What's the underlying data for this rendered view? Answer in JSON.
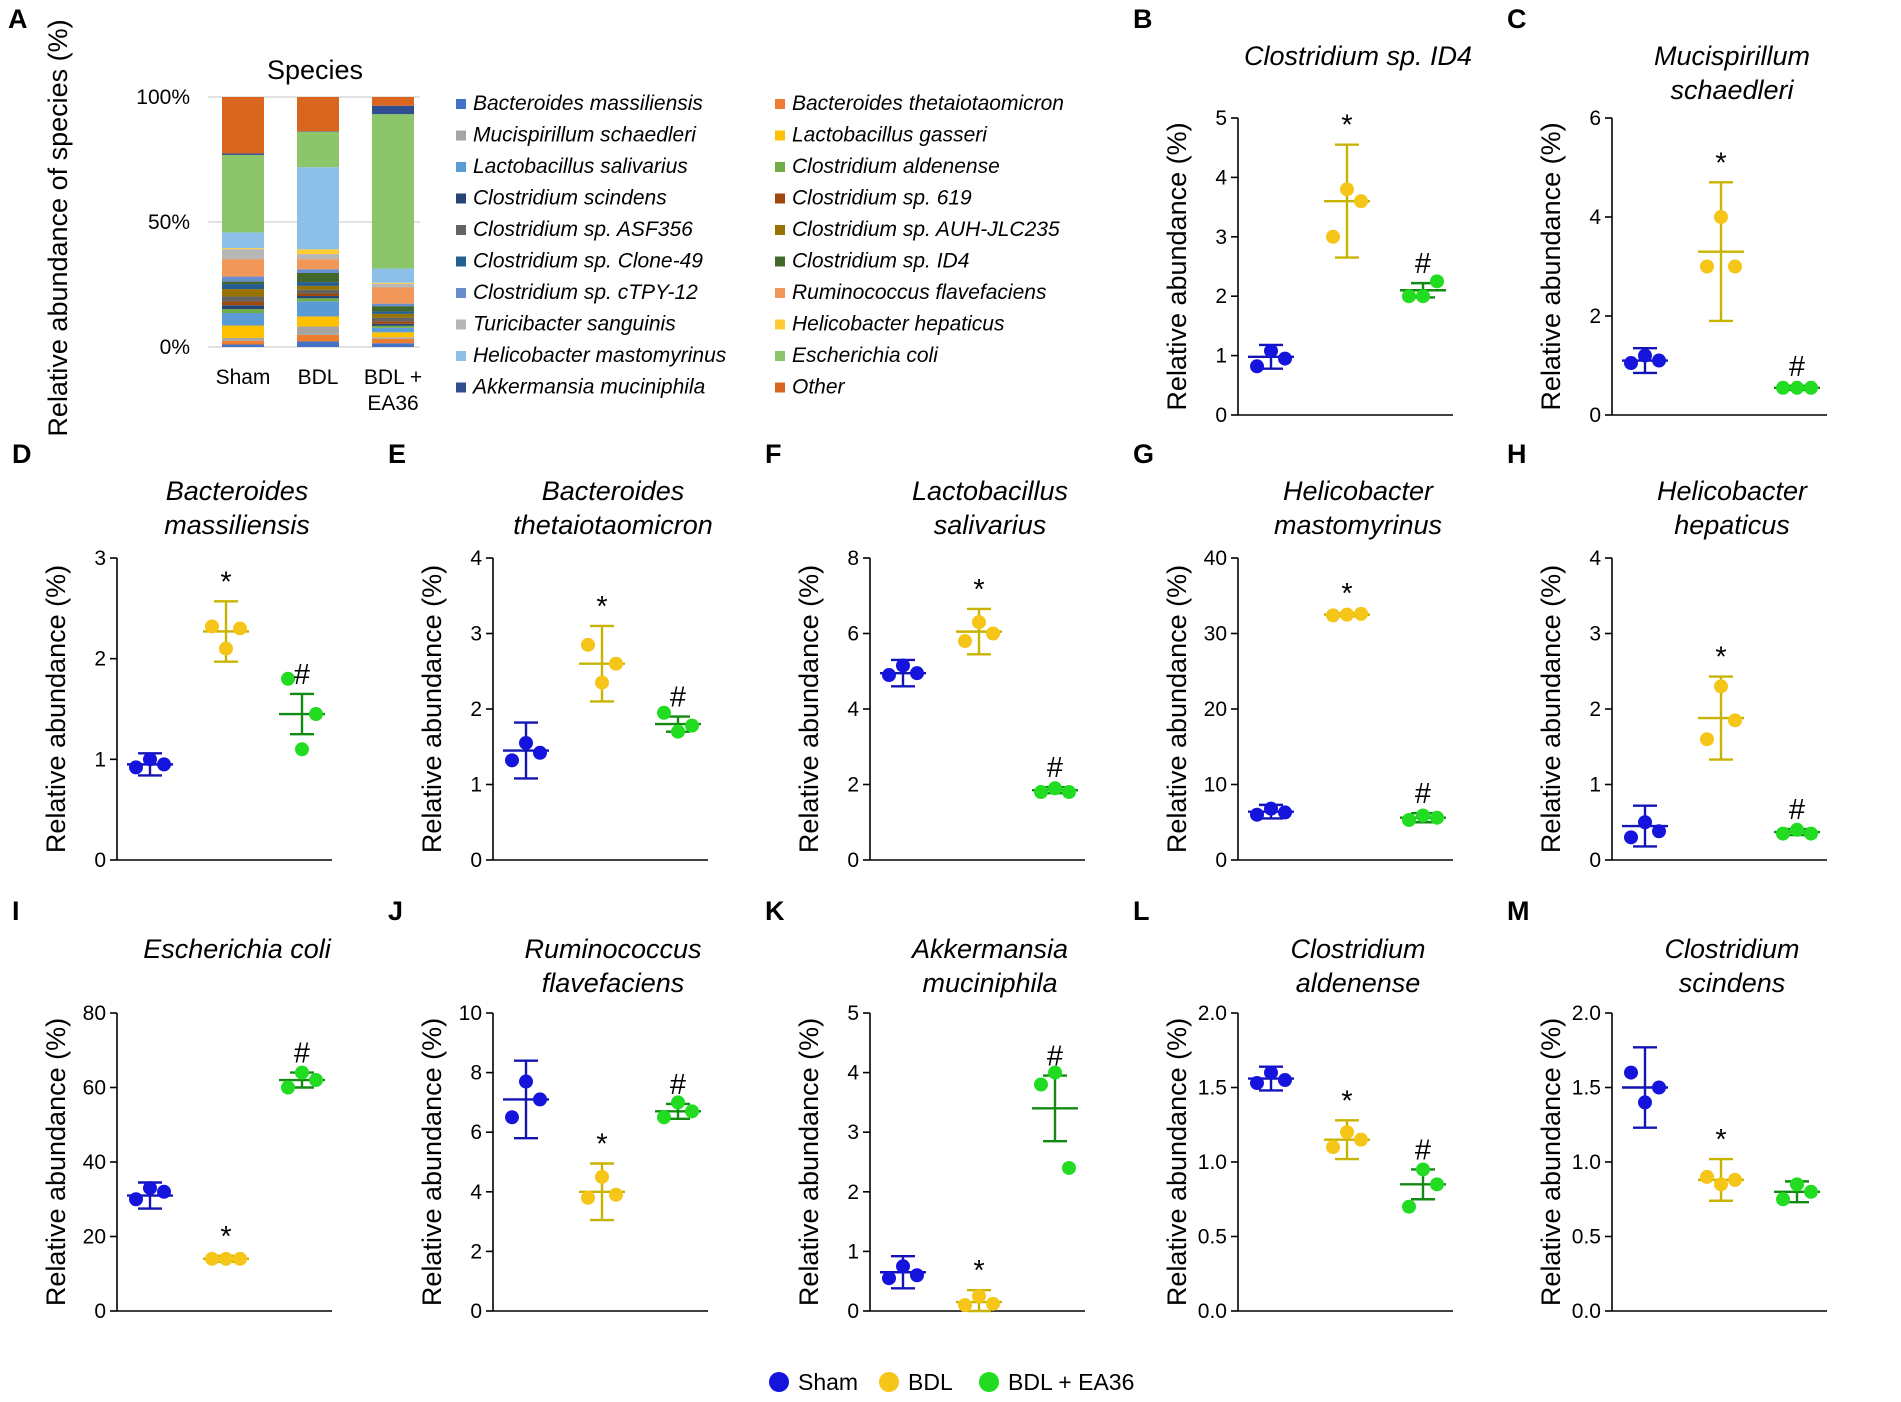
{
  "groups": [
    {
      "name": "Sham",
      "color": "#1414dc"
    },
    {
      "name": "BDL",
      "color": "#f5c518"
    },
    {
      "name": "BDL + EA36",
      "color": "#22dc22"
    }
  ],
  "errorbar_colors": [
    "#1414b4",
    "#c8b400",
    "#128a12"
  ],
  "chart_data": [
    {
      "panel": "A",
      "type": "bar",
      "stacked": true,
      "title": "Species",
      "ylabel": "Relative abundance of species (%)",
      "yticks": [
        "0%",
        "50%",
        "100%"
      ],
      "categories": [
        "Sham",
        "BDL",
        "BDL +\nEA36"
      ],
      "series": [
        {
          "name": "Bacteroides massiliensis",
          "color": "#4472c4",
          "values": [
            1.0,
            2.2,
            1.5
          ]
        },
        {
          "name": "Bacteroides thetaiotaomicron",
          "color": "#ed7d31",
          "values": [
            1.5,
            2.6,
            1.8
          ]
        },
        {
          "name": "Mucispirillum schaedleri",
          "color": "#a5a5a5",
          "values": [
            1.1,
            3.3,
            0.6
          ]
        },
        {
          "name": "Lactobacillus gasseri",
          "color": "#ffc000",
          "values": [
            5.0,
            4.0,
            2.0
          ]
        },
        {
          "name": "Lactobacillus salivarius",
          "color": "#5b9bd5",
          "values": [
            5.0,
            6.0,
            1.8
          ]
        },
        {
          "name": "Clostridium aldenense",
          "color": "#70ad47",
          "values": [
            1.6,
            1.2,
            0.8
          ]
        },
        {
          "name": "Clostridium scindens",
          "color": "#264478",
          "values": [
            1.5,
            0.9,
            0.8
          ]
        },
        {
          "name": "Clostridium sp. 619",
          "color": "#9e480e",
          "values": [
            1.5,
            1.0,
            1.0
          ]
        },
        {
          "name": "Clostridium sp. ASF356",
          "color": "#636363",
          "values": [
            2.0,
            1.5,
            1.5
          ]
        },
        {
          "name": "Clostridium sp. AUH-JLC235",
          "color": "#997300",
          "values": [
            3.0,
            1.5,
            1.5
          ]
        },
        {
          "name": "Clostridium sp. Clone-49",
          "color": "#255e91",
          "values": [
            2.0,
            1.5,
            1.0
          ]
        },
        {
          "name": "Clostridium sp. ID4",
          "color": "#43682b",
          "values": [
            1.0,
            3.6,
            2.1
          ]
        },
        {
          "name": "Clostridium sp. cTPY-12",
          "color": "#698ed0",
          "values": [
            2.0,
            1.5,
            1.0
          ]
        },
        {
          "name": "Ruminococcus flavefaciens",
          "color": "#f1975a",
          "values": [
            7.0,
            4.0,
            6.5
          ]
        },
        {
          "name": "Turicibacter sanguinis",
          "color": "#b7b7b7",
          "values": [
            4.0,
            2.0,
            1.5
          ]
        },
        {
          "name": "Helicobacter hepaticus",
          "color": "#ffcd33",
          "values": [
            0.4,
            1.9,
            0.4
          ]
        },
        {
          "name": "Helicobacter mastomyrinus",
          "color": "#8cc0e8",
          "values": [
            6.3,
            32.5,
            5.7
          ]
        },
        {
          "name": "Escherichia coli",
          "color": "#8dc56b",
          "values": [
            31.0,
            14.0,
            62.0
          ]
        },
        {
          "name": "Akkermansia muciniphila",
          "color": "#2e4e8f",
          "values": [
            0.6,
            0.2,
            3.4
          ]
        },
        {
          "name": "Other",
          "color": "#d9661f",
          "values": [
            22.6,
            13.6,
            3.5
          ]
        }
      ]
    },
    {
      "panel": "B",
      "type": "scatter",
      "title": "Clostridium  sp. ID4",
      "ylabel": "Relative abundance (%)",
      "ylim": [
        0,
        5
      ],
      "yticks": [
        "0",
        "1",
        "2",
        "3",
        "4",
        "5"
      ],
      "points": [
        [
          0.82,
          1.08,
          0.95
        ],
        [
          3.0,
          3.8,
          3.6
        ],
        [
          2.0,
          2.0,
          2.25
        ]
      ],
      "means": [
        0.98,
        3.6,
        2.1
      ],
      "errors": [
        0.2,
        0.95,
        0.12
      ],
      "sig": [
        "",
        "*",
        "#"
      ]
    },
    {
      "panel": "C",
      "type": "scatter",
      "title": "Mucispirillum\nschaedleri",
      "ylabel": "Relative abundance (%)",
      "ylim": [
        0,
        6
      ],
      "yticks": [
        "0",
        "2",
        "4",
        "6"
      ],
      "points": [
        [
          1.05,
          1.2,
          1.1
        ],
        [
          3.0,
          4.0,
          3.0
        ],
        [
          0.55,
          0.55,
          0.55
        ]
      ],
      "means": [
        1.1,
        3.3,
        0.55
      ],
      "errors": [
        0.25,
        1.4,
        0.04
      ],
      "sig": [
        "",
        "*",
        "#"
      ]
    },
    {
      "panel": "D",
      "type": "scatter",
      "title": "Bacteroides\nmassiliensis",
      "ylabel": "Relative abundance (%)",
      "ylim": [
        0,
        3
      ],
      "yticks": [
        "0",
        "1",
        "2",
        "3"
      ],
      "points": [
        [
          0.92,
          1.0,
          0.95
        ],
        [
          2.32,
          2.1,
          2.3
        ],
        [
          1.8,
          1.1,
          1.45
        ]
      ],
      "means": [
        0.95,
        2.27,
        1.45
      ],
      "errors": [
        0.11,
        0.3,
        0.2
      ],
      "sig": [
        "",
        "*",
        "#"
      ]
    },
    {
      "panel": "E",
      "type": "scatter",
      "title": "Bacteroides\nthetaiotaomicron",
      "ylabel": "Relative abundance (%)",
      "ylim": [
        0,
        4
      ],
      "yticks": [
        "0",
        "1",
        "2",
        "3",
        "4"
      ],
      "points": [
        [
          1.32,
          1.55,
          1.42
        ],
        [
          2.85,
          2.35,
          2.6
        ],
        [
          1.95,
          1.7,
          1.78
        ]
      ],
      "means": [
        1.45,
        2.6,
        1.8
      ],
      "errors": [
        0.37,
        0.5,
        0.1
      ],
      "sig": [
        "",
        "*",
        "#"
      ]
    },
    {
      "panel": "F",
      "type": "scatter",
      "title": "Lactobacillus\nsalivarius",
      "ylabel": "Relative abundance (%)",
      "ylim": [
        0,
        8
      ],
      "yticks": [
        "0",
        "2",
        "4",
        "6",
        "8"
      ],
      "points": [
        [
          4.9,
          5.15,
          4.95
        ],
        [
          5.8,
          6.3,
          6.0
        ],
        [
          1.8,
          1.9,
          1.8
        ]
      ],
      "means": [
        4.95,
        6.05,
        1.85
      ],
      "errors": [
        0.35,
        0.6,
        0.08
      ],
      "sig": [
        "",
        "*",
        "#"
      ]
    },
    {
      "panel": "G",
      "type": "scatter",
      "title": "Helicobacter\nmastomyrinus",
      "ylabel": "Relative abundance (%)",
      "ylim": [
        0,
        40
      ],
      "yticks": [
        "0",
        "10",
        "20",
        "30",
        "40"
      ],
      "points": [
        [
          6.0,
          6.8,
          6.3
        ],
        [
          32.4,
          32.5,
          32.6
        ],
        [
          5.3,
          5.9,
          5.6
        ]
      ],
      "means": [
        6.4,
        32.5,
        5.6
      ],
      "errors": [
        0.9,
        0.2,
        0.6
      ],
      "sig": [
        "",
        "*",
        "#"
      ]
    },
    {
      "panel": "H",
      "type": "scatter",
      "title": "Helicobacter\nhepaticus",
      "ylabel": "Relative abundance (%)",
      "ylim": [
        0,
        4
      ],
      "yticks": [
        "0",
        "1",
        "2",
        "3",
        "4"
      ],
      "points": [
        [
          0.3,
          0.5,
          0.38
        ],
        [
          1.6,
          2.3,
          1.85
        ],
        [
          0.35,
          0.4,
          0.35
        ]
      ],
      "means": [
        0.45,
        1.88,
        0.37
      ],
      "errors": [
        0.27,
        0.55,
        0.04
      ],
      "sig": [
        "",
        "*",
        "#"
      ]
    },
    {
      "panel": "I",
      "type": "scatter",
      "title": "Escherichia coli",
      "ylabel": "Relative abundance (%)",
      "ylim": [
        0,
        80
      ],
      "yticks": [
        "0",
        "20",
        "40",
        "60",
        "80"
      ],
      "points": [
        [
          30.0,
          33.0,
          32.0
        ],
        [
          14.0,
          14.0,
          14.0
        ],
        [
          60.0,
          64.0,
          62.0
        ]
      ],
      "means": [
        31.0,
        14.0,
        62.0
      ],
      "errors": [
        3.5,
        0.8,
        2.0
      ],
      "sig": [
        "",
        "*",
        "#"
      ]
    },
    {
      "panel": "J",
      "type": "scatter",
      "title": "Ruminococcus\nflavefaciens",
      "ylabel": "Relative abundance (%)",
      "ylim": [
        0,
        10
      ],
      "yticks": [
        "0",
        "2",
        "4",
        "6",
        "8",
        "10"
      ],
      "points": [
        [
          6.5,
          7.7,
          7.1
        ],
        [
          3.8,
          4.5,
          3.9
        ],
        [
          6.5,
          7.0,
          6.7
        ]
      ],
      "means": [
        7.1,
        4.0,
        6.7
      ],
      "errors": [
        1.3,
        0.95,
        0.25
      ],
      "sig": [
        "",
        "*",
        "#"
      ]
    },
    {
      "panel": "K",
      "type": "scatter",
      "title": "Akkermansia\nmuciniphila",
      "ylabel": "Relative abundance (%)",
      "ylim": [
        0,
        5
      ],
      "yticks": [
        "0",
        "1",
        "2",
        "3",
        "4",
        "5"
      ],
      "points": [
        [
          0.55,
          0.75,
          0.6
        ],
        [
          0.1,
          0.25,
          0.12
        ],
        [
          3.8,
          4.0,
          2.4
        ]
      ],
      "means": [
        0.65,
        0.15,
        3.4
      ],
      "errors": [
        0.27,
        0.2,
        0.55
      ],
      "sig": [
        "",
        "*",
        "#"
      ]
    },
    {
      "panel": "L",
      "type": "scatter",
      "title": "Clostridium\naldenense",
      "ylabel": "Relative abundance (%)",
      "ylim": [
        0,
        2.0
      ],
      "yticks": [
        "0.0",
        "0.5",
        "1.0",
        "1.5",
        "2.0"
      ],
      "points": [
        [
          1.53,
          1.6,
          1.55
        ],
        [
          1.1,
          1.2,
          1.15
        ],
        [
          0.7,
          0.95,
          0.85
        ]
      ],
      "means": [
        1.56,
        1.15,
        0.85
      ],
      "errors": [
        0.08,
        0.13,
        0.1
      ],
      "sig": [
        "",
        "*",
        "#"
      ]
    },
    {
      "panel": "M",
      "type": "scatter",
      "title": "Clostridium\nscindens",
      "ylabel": "Relative abundance (%)",
      "ylim": [
        0,
        2.0
      ],
      "yticks": [
        "0.0",
        "0.5",
        "1.0",
        "1.5",
        "2.0"
      ],
      "points": [
        [
          1.6,
          1.4,
          1.5
        ],
        [
          0.9,
          0.85,
          0.88
        ],
        [
          0.75,
          0.85,
          0.8
        ]
      ],
      "means": [
        1.5,
        0.88,
        0.8
      ],
      "errors": [
        0.27,
        0.14,
        0.07
      ],
      "sig": [
        "",
        "*",
        ""
      ]
    }
  ]
}
